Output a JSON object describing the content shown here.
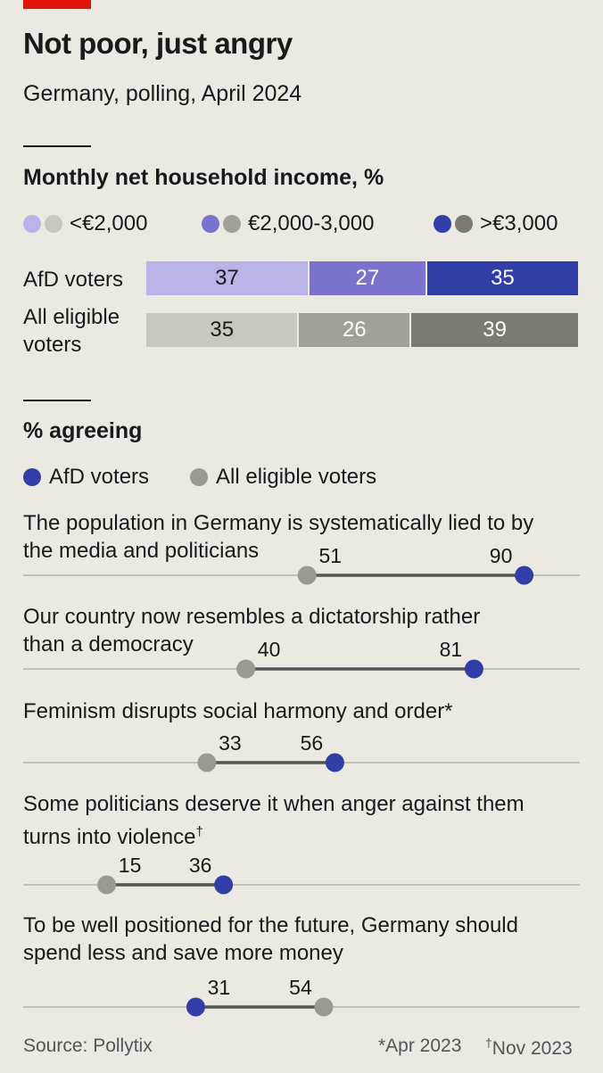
{
  "header": {
    "title": "Not poor, just angry",
    "subtitle": "Germany, polling, April 2024"
  },
  "colors": {
    "tag": "#e3120b",
    "afd_low": "#b9b3e8",
    "afd_mid": "#7a72cc",
    "afd_high": "#323ea8",
    "all_low": "#c9c8bd",
    "all_mid": "#a3a195",
    "all_high": "#7d7b70",
    "afd_dot": "#323ea8",
    "all_dot": "#9c9a8e"
  },
  "income": {
    "title": "Monthly net household income, %",
    "legend": [
      "<€2,000",
      "€2,000-3,000",
      ">€3,000"
    ],
    "rows": [
      {
        "label": "AfD voters",
        "values": [
          37,
          27,
          35
        ]
      },
      {
        "label": "All eligible voters",
        "values": [
          35,
          26,
          39
        ]
      }
    ]
  },
  "agreeing": {
    "title": "% agreeing",
    "legend": [
      "AfD voters",
      "All eligible voters"
    ]
  },
  "chart_data": {
    "type": "dot-range",
    "xlim": [
      0,
      100
    ],
    "series": [
      {
        "name": "AfD voters"
      },
      {
        "name": "All eligible voters"
      }
    ],
    "items": [
      {
        "label_lines": [
          "The population in Germany is systematically lied to by",
          "the media and politicians"
        ],
        "footnote": "",
        "afd": 90,
        "all": 51
      },
      {
        "label_lines": [
          "Our country now resembles a dictatorship rather",
          "than a democracy"
        ],
        "footnote": "",
        "afd": 81,
        "all": 40
      },
      {
        "label_lines": [
          "Feminism disrupts social harmony and order*"
        ],
        "footnote": "",
        "afd": 56,
        "all": 33
      },
      {
        "label_lines": [
          "Some politicians deserve it when anger against them",
          "turns into violence"
        ],
        "footnote": "†",
        "afd": 36,
        "all": 15
      },
      {
        "label_lines": [
          "To be well positioned for the future, Germany should",
          "spend less and save more money"
        ],
        "footnote": "",
        "afd": 31,
        "all": 54
      }
    ]
  },
  "footer": {
    "source": "Source: Pollytix",
    "note1": "*Apr 2023",
    "note2_mark": "†",
    "note2": "Nov 2023"
  }
}
